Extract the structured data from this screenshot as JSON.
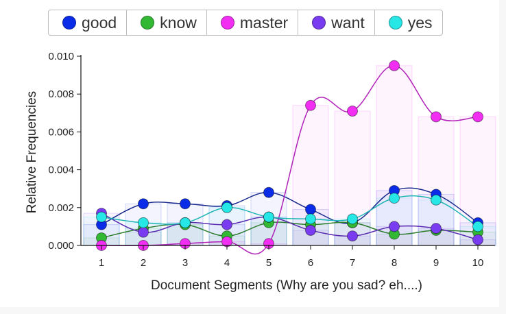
{
  "chart_data": {
    "type": "line",
    "title": "",
    "xlabel": "Document Segments (Why are you sad? eh....)",
    "ylabel": "Relative Frequencies",
    "categories": [
      "1",
      "2",
      "3",
      "4",
      "5",
      "6",
      "7",
      "8",
      "9",
      "10"
    ],
    "ylim": [
      0,
      0.01
    ],
    "yticks": [
      "0.000",
      "0.002",
      "0.004",
      "0.006",
      "0.008",
      "0.010"
    ],
    "legend_position": "top",
    "grid": false,
    "series": [
      {
        "name": "good",
        "color": "#0a2be8",
        "values": [
          0.0011,
          0.0022,
          0.0022,
          0.0021,
          0.0028,
          0.0019,
          0.0012,
          0.0029,
          0.0027,
          0.0012
        ]
      },
      {
        "name": "know",
        "color": "#32b832",
        "values": [
          0.0004,
          0.0009,
          0.0011,
          0.0005,
          0.0012,
          0.0011,
          0.0012,
          0.0006,
          0.0008,
          0.0007
        ]
      },
      {
        "name": "master",
        "color": "#f22ef2",
        "values": [
          0.0,
          0.0,
          0.0001,
          0.0002,
          0.0001,
          0.0074,
          0.0071,
          0.0095,
          0.0068,
          0.0068
        ]
      },
      {
        "name": "want",
        "color": "#7a3cf0",
        "values": [
          0.0017,
          0.0007,
          0.0012,
          0.0011,
          0.0015,
          0.0008,
          0.0005,
          0.001,
          0.0009,
          0.0003
        ]
      },
      {
        "name": "yes",
        "color": "#27e6e6",
        "values": [
          0.0015,
          0.0012,
          0.0012,
          0.002,
          0.0015,
          0.0014,
          0.0014,
          0.0025,
          0.0024,
          0.001
        ]
      }
    ]
  }
}
